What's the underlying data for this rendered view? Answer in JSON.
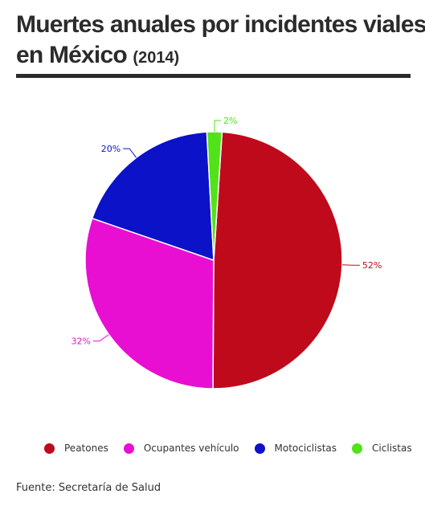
{
  "title": {
    "line1": "Muertes anuales por incidentes viales",
    "line2": "en México",
    "year": "(2014)"
  },
  "source": "Fuente: Secretaría de Salud",
  "chart_data": {
    "type": "pie",
    "title": "Muertes anuales por incidentes viales en México (2014)",
    "legend_position": "bottom",
    "slices": [
      {
        "name": "Peatones",
        "value": 52,
        "label": "52%",
        "color": "#bf0a1b"
      },
      {
        "name": "Ocupantes vehículo",
        "value": 32,
        "label": "32%",
        "color": "#e80fd2"
      },
      {
        "name": "Motociclistas",
        "value": 20,
        "label": "20%",
        "color": "#0c12c8"
      },
      {
        "name": "Ciclistas",
        "value": 2,
        "label": "2%",
        "color": "#52e219"
      }
    ]
  }
}
